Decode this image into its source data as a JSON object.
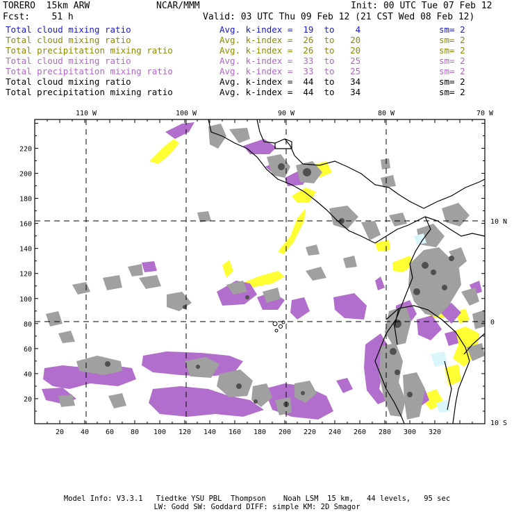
{
  "header": {
    "model": "TORERO  15km ARW",
    "org": "NCAR/MMM",
    "init": "Init: 00 UTC Tue 07 Feb 12",
    "fcst": "Fcst:    51 h",
    "valid": "Valid: 03 UTC Thu 09 Feb 12 (21 CST Wed 08 Feb 12)"
  },
  "legend": [
    {
      "field": "Total cloud mixing ratio",
      "kindex": "Avg. k-index =  19  to    4",
      "sm": "sm= 2",
      "color": "#1a1acc"
    },
    {
      "field": "Total cloud mixing ratio",
      "kindex": "Avg. k-index =  26  to   20",
      "sm": "sm= 2",
      "color": "#8b8b00"
    },
    {
      "field": "Total precipitation mixing ratio",
      "kindex": "Avg. k-index =  26  to   20",
      "sm": "sm= 2",
      "color": "#8b8b00"
    },
    {
      "field": "Total cloud mixing ratio",
      "kindex": "Avg. k-index =  33  to   25",
      "sm": "sm= 2",
      "color": "#b266cc"
    },
    {
      "field": "Total precipitation mixing ratio",
      "kindex": "Avg. k-index =  33  to   25",
      "sm": "sm= 2",
      "color": "#b266cc"
    },
    {
      "field": "Total cloud mixing ratio",
      "kindex": "Avg. k-index =  44  to   34",
      "sm": "sm= 2",
      "color": "#000000"
    },
    {
      "field": "Total precipitation mixing ratio",
      "kindex": "Avg. k-index =  44  to   34",
      "sm": "sm= 2",
      "color": "#000000"
    }
  ],
  "axes": {
    "lon_labels": [
      "110 W",
      "100 W",
      "90 W",
      "80 W",
      "70 W"
    ],
    "lat_labels": [
      "10 N",
      "0",
      "10 S"
    ],
    "x_ticks": [
      "20",
      "40",
      "60",
      "80",
      "100",
      "120",
      "140",
      "160",
      "180",
      "200",
      "220",
      "240",
      "260",
      "280",
      "300",
      "320"
    ],
    "y_ticks": [
      "220",
      "200",
      "180",
      "160",
      "140",
      "120",
      "100",
      "80",
      "60",
      "40",
      "20"
    ]
  },
  "footer": {
    "line1": "Model Info: V3.3.1   Tiedtke YSU PBL  Thompson    Noah LSM  15 km,   44 levels,   95 sec",
    "line2": "LW: Godd SW: Goddard DIFF: simple KM: 2D Smagor"
  },
  "colors": {
    "yellow": "#ffff33",
    "purple": "#b26ecc",
    "gray": "#a0a0a0",
    "darkgray": "#505050",
    "cyan": "#d8f6fb"
  }
}
